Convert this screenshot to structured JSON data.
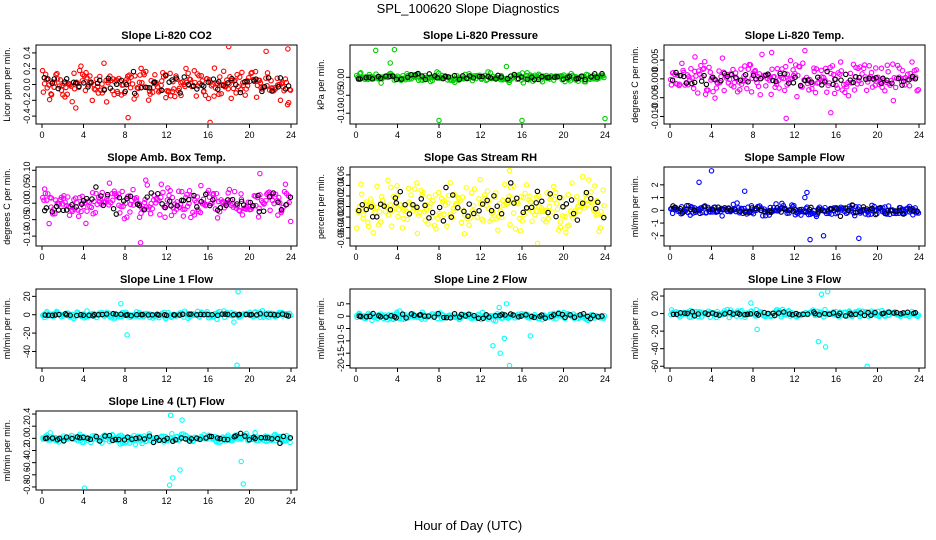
{
  "figure": {
    "title": "SPL_100620  Slope Diagnostics",
    "xlabel": "Hour of Day (UTC)"
  },
  "chart_data": [
    {
      "type": "scatter",
      "title": "Slope Li-820 CO2",
      "ylabel": "Licor ppm per min.",
      "xlim": [
        0,
        24
      ],
      "ylim": [
        -0.5,
        0.5
      ],
      "xticks": [
        "0",
        "4",
        "8",
        "12",
        "16",
        "20",
        "24"
      ],
      "yticks": [
        -0.4,
        -0.2,
        0.0,
        0.2,
        0.4
      ],
      "ytick_labels": [
        "-0.4",
        "-0.2",
        "0.0",
        "0.2",
        "0.4"
      ],
      "series": [
        {
          "color": "#ff0000",
          "spread": 0.14,
          "outliers": [
            [
              8.3,
              -0.42
            ],
            [
              16.2,
              -0.48
            ],
            [
              18.0,
              0.48
            ],
            [
              21.6,
              0.42
            ],
            [
              23.7,
              0.45
            ]
          ]
        },
        {
          "color": "#000000",
          "spread": 0.08,
          "outliers": []
        }
      ]
    },
    {
      "type": "scatter",
      "title": "Slope Li-820 Pressure",
      "ylabel": "kPa per min.",
      "xlim": [
        0,
        24
      ],
      "ylim": [
        -0.13,
        0.09
      ],
      "xticks": [
        "0",
        "4",
        "8",
        "12",
        "16",
        "20",
        "24"
      ],
      "yticks": [
        -0.1,
        -0.05,
        0.0
      ],
      "ytick_labels": [
        "-0.10",
        "-0.05",
        "0.00"
      ],
      "series": [
        {
          "color": "#00cc00",
          "spread": 0.008,
          "outliers": [
            [
              1.9,
              0.075
            ],
            [
              3.7,
              0.077
            ],
            [
              3.3,
              0.04
            ],
            [
              8.0,
              -0.12
            ],
            [
              16.0,
              -0.12
            ],
            [
              24.0,
              -0.115
            ],
            [
              14.5,
              0.03
            ]
          ]
        },
        {
          "color": "#000000",
          "spread": 0.006,
          "outliers": []
        }
      ]
    },
    {
      "type": "scatter",
      "title": "Slope Li-820 Temp.",
      "ylabel": "degrees C per min.",
      "xlim": [
        0,
        24
      ],
      "ylim": [
        -0.012,
        0.009
      ],
      "xticks": [
        "0",
        "4",
        "8",
        "12",
        "16",
        "20",
        "24"
      ],
      "yticks": [
        -0.01,
        -0.005,
        0.0,
        0.005
      ],
      "ytick_labels": [
        "-0.010",
        "-0.005",
        "0.000",
        "0.005"
      ],
      "series": [
        {
          "color": "#ff00ff",
          "spread": 0.0035,
          "outliers": [
            [
              11.2,
              -0.0105
            ],
            [
              13.0,
              0.0075
            ],
            [
              9.8,
              0.007
            ],
            [
              15.5,
              -0.009
            ]
          ]
        },
        {
          "color": "#000000",
          "spread": 0.0015,
          "outliers": []
        }
      ]
    },
    {
      "type": "scatter",
      "title": "Slope Amb. Box Temp.",
      "ylabel": "degrees C per min.",
      "xlim": [
        0,
        24
      ],
      "ylim": [
        -0.13,
        0.11
      ],
      "xticks": [
        "0",
        "4",
        "8",
        "12",
        "16",
        "20",
        "24"
      ],
      "yticks": [
        -0.1,
        -0.05,
        0.0,
        0.05,
        0.1
      ],
      "ytick_labels": [
        "-0.10",
        "-0.05",
        "0.00",
        "0.05",
        "0.10"
      ],
      "series": [
        {
          "color": "#ff00ff",
          "spread": 0.035,
          "outliers": [
            [
              9.5,
              -0.12
            ],
            [
              21.0,
              0.09
            ],
            [
              10.0,
              0.07
            ]
          ]
        },
        {
          "color": "#000000",
          "spread": 0.025,
          "outliers": []
        }
      ]
    },
    {
      "type": "scatter",
      "title": "Slope Gas Stream RH",
      "ylabel": "percent per min.",
      "xlim": [
        0,
        24
      ],
      "ylim": [
        -0.075,
        0.075
      ],
      "xticks": [
        "0",
        "4",
        "8",
        "12",
        "16",
        "20",
        "24"
      ],
      "yticks": [
        -0.06,
        -0.04,
        -0.02,
        0.0,
        0.02,
        0.04,
        0.06
      ],
      "ytick_labels": [
        "-0.06",
        "-0.04",
        "-0.02",
        "0.00",
        "0.02",
        "0.04",
        "0.06"
      ],
      "series": [
        {
          "color": "#ffff00",
          "spread": 0.03,
          "outliers": [
            [
              14.8,
              0.068
            ],
            [
              17.5,
              -0.07
            ]
          ]
        },
        {
          "color": "#000000",
          "spread": 0.022,
          "outliers": []
        }
      ]
    },
    {
      "type": "scatter",
      "title": "Slope Sample Flow",
      "ylabel": "ml/min per min.",
      "xlim": [
        0,
        24
      ],
      "ylim": [
        -2.8,
        3.4
      ],
      "xticks": [
        "0",
        "4",
        "8",
        "12",
        "16",
        "20",
        "24"
      ],
      "yticks": [
        -2,
        -1,
        0,
        1,
        2
      ],
      "ytick_labels": [
        "-2",
        "-1",
        "0",
        "1",
        "2"
      ],
      "series": [
        {
          "color": "#0000ff",
          "spread": 0.3,
          "outliers": [
            [
              4.0,
              3.1
            ],
            [
              2.8,
              2.2
            ],
            [
              13.2,
              1.4
            ],
            [
              13.5,
              -2.3
            ],
            [
              14.8,
              -2.0
            ],
            [
              18.2,
              -2.2
            ],
            [
              7.2,
              1.5
            ],
            [
              13.0,
              1.0
            ]
          ]
        },
        {
          "color": "#000000",
          "spread": 0.25,
          "outliers": []
        }
      ]
    },
    {
      "type": "scatter",
      "title": "Slope Line 1 Flow",
      "ylabel": "ml/min per min.",
      "xlim": [
        0,
        24
      ],
      "ylim": [
        -58,
        28
      ],
      "xticks": [
        "0",
        "4",
        "8",
        "12",
        "16",
        "20",
        "24"
      ],
      "yticks": [
        -40,
        -20,
        0,
        20
      ],
      "ytick_labels": [
        "-40",
        "-20",
        "0",
        "20"
      ],
      "series": [
        {
          "color": "#00ffff",
          "spread": 2.5,
          "outliers": [
            [
              18.8,
              -55
            ],
            [
              18.9,
              25
            ],
            [
              8.2,
              -22
            ],
            [
              7.6,
              12
            ],
            [
              18.5,
              -8
            ]
          ]
        },
        {
          "color": "#000000",
          "spread": 0.7,
          "outliers": []
        }
      ]
    },
    {
      "type": "scatter",
      "title": "Slope Line 2 Flow",
      "ylabel": "ml/min per min.",
      "xlim": [
        0,
        24
      ],
      "ylim": [
        -21,
        11
      ],
      "xticks": [
        "0",
        "4",
        "8",
        "12",
        "16",
        "20",
        "24"
      ],
      "yticks": [
        -20,
        -15,
        -10,
        -5,
        0,
        5
      ],
      "ytick_labels": [
        "-20",
        "-15",
        "-10",
        "-5",
        "0",
        "5"
      ],
      "series": [
        {
          "color": "#00ffff",
          "spread": 1.0,
          "outliers": [
            [
              14.8,
              -20
            ],
            [
              13.9,
              -15
            ],
            [
              14.3,
              -9
            ],
            [
              13.2,
              -12
            ],
            [
              16.8,
              -8
            ],
            [
              14.5,
              5
            ],
            [
              13.8,
              3.5
            ]
          ]
        },
        {
          "color": "#000000",
          "spread": 0.8,
          "outliers": []
        }
      ]
    },
    {
      "type": "scatter",
      "title": "Slope Line 3 Flow",
      "ylabel": "ml/min per min.",
      "xlim": [
        0,
        24
      ],
      "ylim": [
        -62,
        28
      ],
      "xticks": [
        "0",
        "4",
        "8",
        "12",
        "16",
        "20",
        "24"
      ],
      "yticks": [
        -60,
        -40,
        -20,
        0,
        20
      ],
      "ytick_labels": [
        "-60",
        "-40",
        "-20",
        "0",
        "20"
      ],
      "series": [
        {
          "color": "#00ffff",
          "spread": 3.0,
          "outliers": [
            [
              19.0,
              -60
            ],
            [
              15.0,
              -38
            ],
            [
              14.3,
              -32
            ],
            [
              15.2,
              25
            ],
            [
              14.6,
              22
            ],
            [
              7.8,
              12
            ],
            [
              8.4,
              -18
            ]
          ]
        },
        {
          "color": "#000000",
          "spread": 1.5,
          "outliers": []
        }
      ]
    },
    {
      "type": "scatter",
      "title": "Slope Line 4 (LT) Flow",
      "ylabel": "ml/min per min.",
      "xlim": [
        0,
        24
      ],
      "ylim": [
        -0.85,
        0.45
      ],
      "xticks": [
        "0",
        "4",
        "8",
        "12",
        "16",
        "20",
        "24"
      ],
      "yticks": [
        -0.8,
        -0.6,
        -0.4,
        -0.2,
        0.0,
        0.2,
        0.4
      ],
      "ytick_labels": [
        "-0.8",
        "-0.6",
        "-0.4",
        "-0.2",
        "0.0",
        "0.2",
        "0.4"
      ],
      "series": [
        {
          "color": "#00ffff",
          "spread": 0.05,
          "outliers": [
            [
              4.1,
              -0.82
            ],
            [
              12.3,
              -0.77
            ],
            [
              12.6,
              -0.65
            ],
            [
              13.3,
              -0.52
            ],
            [
              19.4,
              -0.75
            ],
            [
              12.4,
              0.38
            ],
            [
              13.5,
              0.3
            ],
            [
              19.2,
              -0.38
            ]
          ]
        },
        {
          "color": "#000000",
          "spread": 0.04,
          "outliers": []
        }
      ]
    }
  ]
}
